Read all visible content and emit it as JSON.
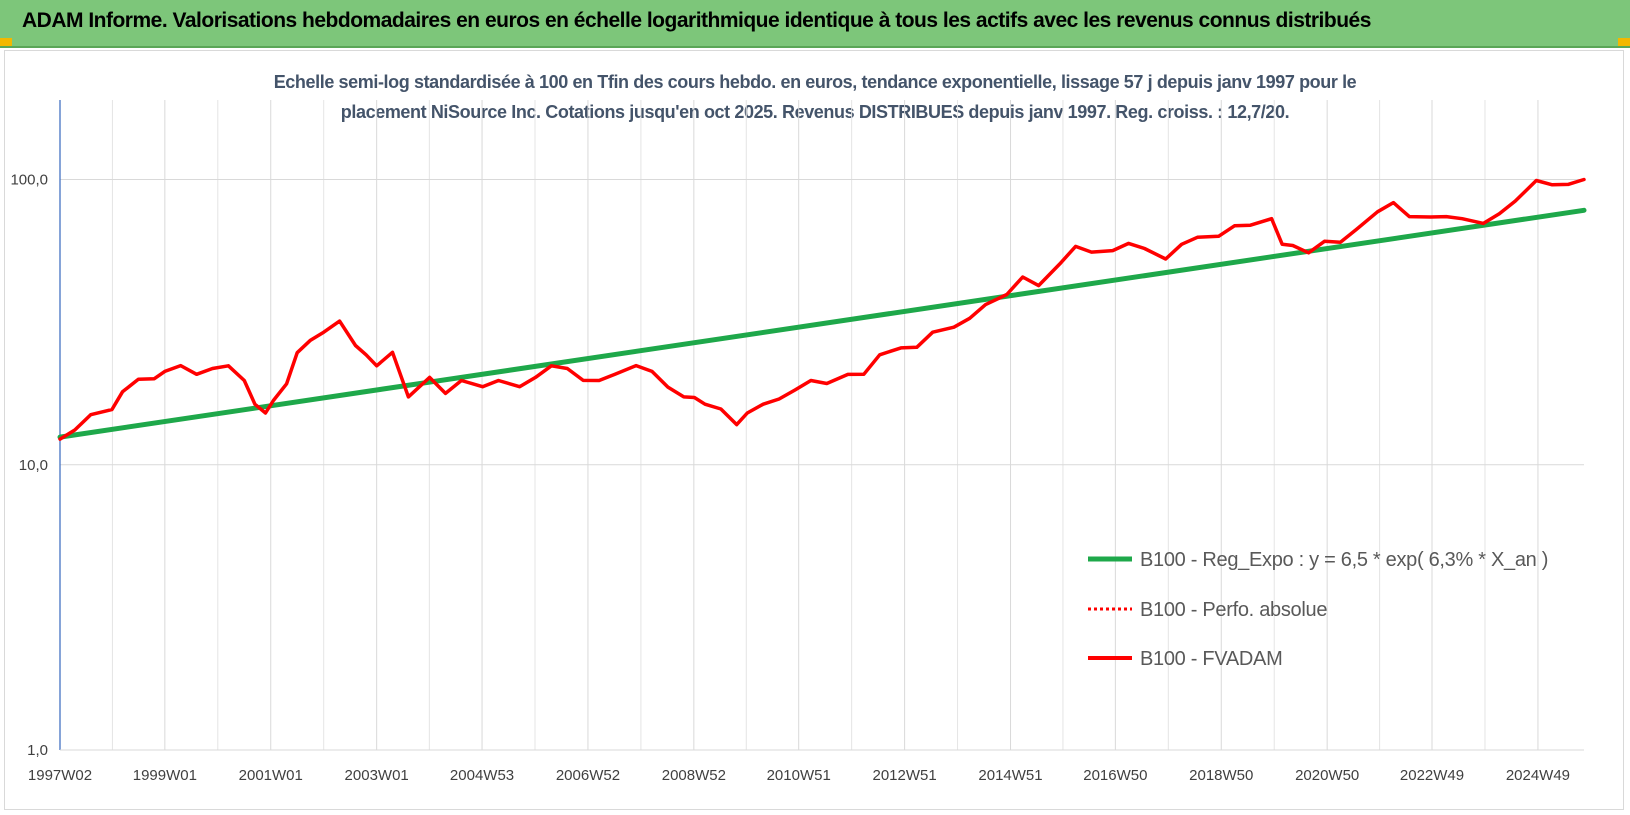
{
  "header": {
    "title": "ADAM Informe. Valorisations hebdomadaires en euros en échelle logarithmique identique à tous les actifs avec les revenus connus distribués"
  },
  "chart_data": {
    "type": "line",
    "subtitle_lines": [
      "Echelle semi-log standardisée à 100 en Tfin des cours hebdo. en euros, tendance exponentielle, lissage 57 j depuis janv 1997 pour le",
      "placement NiSource Inc. Cotations jusqu'en oct 2025. Revenus DISTRIBUES depuis janv 1997. Reg. croiss. : 12,7/20."
    ],
    "y_scale": "log",
    "ylim": [
      1,
      190
    ],
    "y_ticks": [
      {
        "value": 1,
        "label": "1,0"
      },
      {
        "value": 10,
        "label": "10,0"
      },
      {
        "value": 100,
        "label": "100,0"
      }
    ],
    "xlim": [
      1997.02,
      2025.8
    ],
    "x_ticks": [
      {
        "value": 1997.02,
        "label": "1997W02"
      },
      {
        "value": 1999.0,
        "label": "1999W01"
      },
      {
        "value": 2001.0,
        "label": "2001W01"
      },
      {
        "value": 2003.0,
        "label": "2003W01"
      },
      {
        "value": 2004.99,
        "label": "2004W53"
      },
      {
        "value": 2006.99,
        "label": "2006W52"
      },
      {
        "value": 2008.99,
        "label": "2008W52"
      },
      {
        "value": 2010.97,
        "label": "2010W51"
      },
      {
        "value": 2012.97,
        "label": "2012W51"
      },
      {
        "value": 2014.97,
        "label": "2014W51"
      },
      {
        "value": 2016.95,
        "label": "2016W50"
      },
      {
        "value": 2018.95,
        "label": "2018W50"
      },
      {
        "value": 2020.95,
        "label": "2020W50"
      },
      {
        "value": 2022.93,
        "label": "2022W49"
      },
      {
        "value": 2024.93,
        "label": "2024W49"
      }
    ],
    "grid": true,
    "legend_position": "right-middle",
    "series": [
      {
        "name": "B100 - Reg_Expo : y = 6,5 * exp( 6,3% *  X_an )",
        "color": "#1ea84a",
        "style": "solid",
        "x": [
          1997.02,
          2025.8
        ],
        "values": [
          12.5,
          78
        ]
      },
      {
        "name": "B100 - Perfo. absolue",
        "color": "#ff0000",
        "style": "dotted",
        "x": [],
        "values": []
      },
      {
        "name": "B100 - FVADAM",
        "color": "#ff0000",
        "style": "solid",
        "x": [
          1997.02,
          1997.3,
          1997.6,
          1998.0,
          1998.2,
          1998.5,
          1998.8,
          1999.0,
          1999.3,
          1999.6,
          1999.9,
          2000.2,
          2000.5,
          2000.7,
          2000.9,
          2001.05,
          2001.3,
          2001.5,
          2001.75,
          2002.0,
          2002.3,
          2002.6,
          2002.8,
          2003.0,
          2003.3,
          2003.6,
          2004.0,
          2004.3,
          2004.6,
          2005.0,
          2005.3,
          2005.7,
          2006.0,
          2006.3,
          2006.6,
          2006.9,
          2007.2,
          2007.5,
          2007.9,
          2008.2,
          2008.5,
          2008.8,
          2009.0,
          2009.2,
          2009.5,
          2009.8,
          2010.0,
          2010.3,
          2010.6,
          2010.9,
          2011.2,
          2011.5,
          2011.9,
          2012.2,
          2012.5,
          2012.9,
          2013.2,
          2013.5,
          2013.9,
          2014.2,
          2014.5,
          2014.9,
          2015.2,
          2015.5,
          2015.9,
          2016.2,
          2016.5,
          2016.9,
          2017.2,
          2017.5,
          2017.9,
          2018.2,
          2018.5,
          2018.9,
          2019.2,
          2019.5,
          2019.9,
          2020.1,
          2020.3,
          2020.6,
          2020.9,
          2021.2,
          2021.5,
          2021.9,
          2022.2,
          2022.5,
          2022.9,
          2023.2,
          2023.5,
          2023.9,
          2024.2,
          2024.5,
          2024.9,
          2025.2,
          2025.5,
          2025.8
        ],
        "values": [
          12.3,
          13.4,
          14.8,
          15.8,
          17.8,
          20.2,
          19.8,
          21.5,
          22.0,
          21.0,
          21.5,
          22.5,
          19.5,
          16.5,
          15.0,
          17.0,
          19.0,
          25.0,
          27.0,
          29.5,
          31.5,
          26.5,
          24.0,
          22.5,
          24.5,
          17.5,
          20.0,
          18.0,
          19.5,
          19.0,
          19.5,
          19.0,
          20.0,
          22.5,
          21.5,
          20.0,
          19.5,
          21.0,
          22.0,
          21.5,
          18.5,
          17.5,
          17.0,
          16.5,
          15.5,
          14.0,
          15.0,
          16.5,
          16.8,
          18.5,
          19.5,
          19.5,
          20.5,
          21.0,
          24.0,
          26.0,
          25.5,
          29.5,
          30.0,
          33.0,
          36.0,
          40.0,
          45.0,
          43.0,
          50.0,
          59.0,
          55.0,
          57.0,
          59.0,
          58.0,
          52.0,
          60.0,
          62.0,
          64.0,
          68.0,
          70.0,
          72.0,
          60.0,
          58.0,
          56.0,
          60.0,
          61.0,
          66.0,
          78.0,
          82.0,
          75.0,
          73.0,
          75.0,
          72.0,
          71.0,
          75.0,
          85.0,
          98.0,
          97.0,
          95.0,
          100.0
        ]
      }
    ]
  }
}
